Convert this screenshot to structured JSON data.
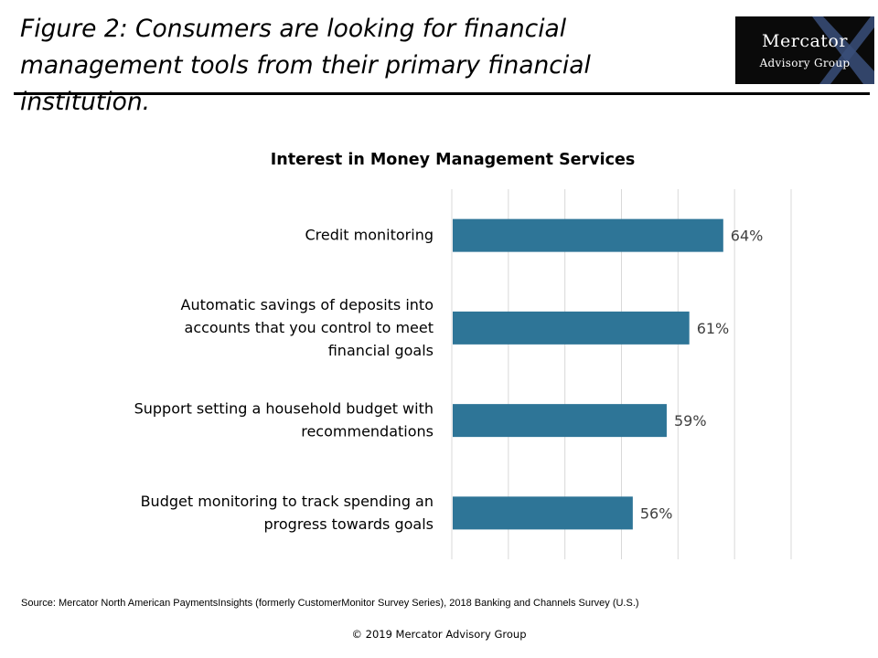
{
  "header": {
    "title": "Figure 2: Consumers are looking for financial management tools from their primary financial institution.",
    "logo": {
      "line1": "Mercator",
      "line2": "Advisory Group"
    }
  },
  "chart_data": {
    "type": "bar",
    "orientation": "horizontal",
    "title": "Interest in Money Management Services",
    "categories": [
      "Credit monitoring",
      "Automatic savings of deposits into accounts that you control to meet financial goals",
      "Support setting a household budget with recommendations",
      "Budget monitoring to track spending an progress towards goals"
    ],
    "category_lines": [
      [
        "Credit monitoring"
      ],
      [
        "Automatic savings of deposits into",
        "accounts that you control to meet",
        "financial goals"
      ],
      [
        "Support setting a household budget with",
        "recommendations"
      ],
      [
        "Budget monitoring to track spending an",
        "progress towards goals"
      ]
    ],
    "values": [
      64,
      61,
      59,
      56
    ],
    "data_labels": [
      "64%",
      "61%",
      "59%",
      "56%"
    ],
    "xlim": [
      40,
      70
    ],
    "gridlines": true,
    "bar_color": "#2e7597",
    "grid_color": "#d9d9d9"
  },
  "footer": {
    "source": "Source:  Mercator North American PaymentsInsights (formerly CustomerMonitor Survey Series), 2018 Banking and Channels Survey (U.S.)",
    "copyright": "© 2019 Mercator Advisory Group"
  }
}
